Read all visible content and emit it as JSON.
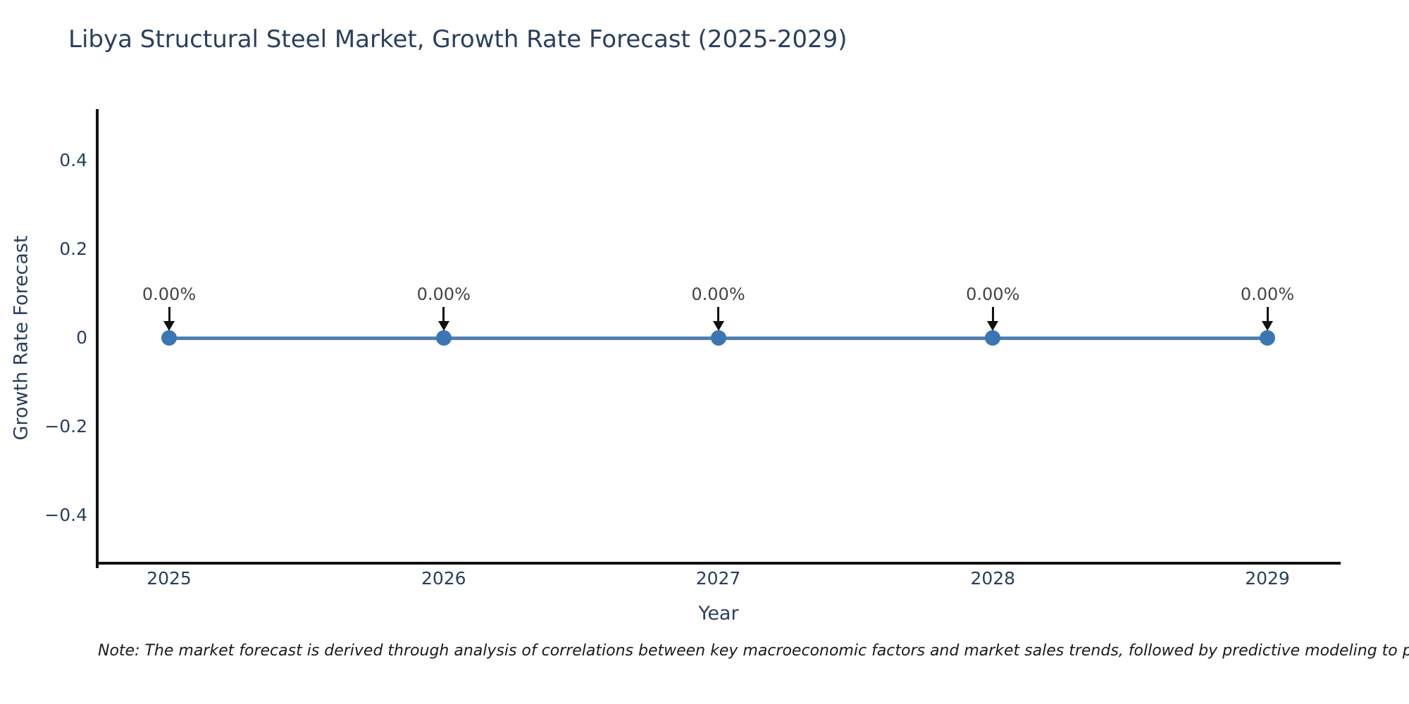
{
  "note": "Note: The market forecast is derived through analysis of correlations between key macroeconomic factors and market sales trends, followed by predictive modeling to project future sal",
  "chart_data": {
    "type": "line",
    "title": "Libya Structural Steel Market, Growth Rate Forecast (2025-2029)",
    "xlabel": "Year",
    "ylabel": "Growth Rate Forecast",
    "categories": [
      "2025",
      "2026",
      "2027",
      "2028",
      "2029"
    ],
    "values": [
      0,
      0,
      0,
      0,
      0
    ],
    "point_labels": [
      "0.00%",
      "0.00%",
      "0.00%",
      "0.00%",
      "0.00%"
    ],
    "ytick_labels": [
      "0.4",
      "0.2",
      "0",
      "−0.2",
      "−0.4"
    ],
    "ytick_values": [
      0.4,
      0.2,
      0,
      -0.2,
      -0.4
    ],
    "ylim": [
      -0.5,
      0.5
    ],
    "grid": false,
    "legend_position": "none",
    "marker_style": "circle-with-down-arrow-annotation",
    "colors": {
      "text": "#2a3f5f",
      "annotation": "#444444",
      "axis": "#111111",
      "line": "#4e81ad",
      "marker": "#3a76b4",
      "note": "#1a1a1a",
      "background": "#ffffff"
    }
  }
}
